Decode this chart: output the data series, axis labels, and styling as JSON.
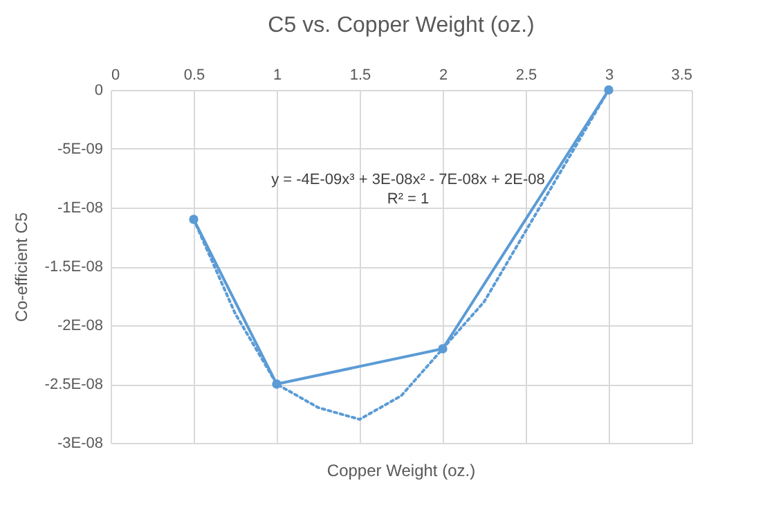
{
  "chart_data": {
    "type": "line",
    "title": "C5 vs. Copper Weight (oz.)",
    "xlabel": "Copper Weight (oz.)",
    "ylabel": "Co-efficient C5",
    "xlim": [
      0,
      3.5
    ],
    "xticks": [
      0,
      0.5,
      1,
      1.5,
      2,
      2.5,
      3,
      3.5
    ],
    "ylim": [
      -3e-08,
      0
    ],
    "yticks": [
      {
        "value": -3e-08,
        "label": "-3E-08"
      },
      {
        "value": -2.5e-08,
        "label": "-2.5E-08"
      },
      {
        "value": -2e-08,
        "label": "-2E-08"
      },
      {
        "value": -1.5e-08,
        "label": "-1.5E-08"
      },
      {
        "value": -1e-08,
        "label": "-1E-08"
      },
      {
        "value": -5e-09,
        "label": "-5E-09"
      },
      {
        "value": 0,
        "label": "0"
      }
    ],
    "grid": true,
    "marker": "circle",
    "annotations": [
      "y = -4E-09x³ + 3E-08x² - 7E-08x + 2E-08",
      "R² = 1"
    ],
    "series": [
      {
        "color": "#5b9bd5",
        "x": [
          0.5,
          1,
          2,
          3
        ],
        "values": [
          -1.1e-08,
          -2.5e-08,
          -2.2e-08,
          0
        ]
      },
      {
        "type": "line",
        "color": "#5b9bd5",
        "line_style": "dotted",
        "marker": "none",
        "x": [
          0.5,
          0.75,
          1,
          1.25,
          1.5,
          1.75,
          2,
          2.25,
          2.5,
          2.75,
          3
        ],
        "values": [
          -1.1e-08,
          -1.9e-08,
          -2.5e-08,
          -2.7e-08,
          -2.8e-08,
          -2.6e-08,
          -2.2e-08,
          -1.8e-08,
          -1.2e-08,
          -6e-09,
          0
        ]
      }
    ]
  }
}
